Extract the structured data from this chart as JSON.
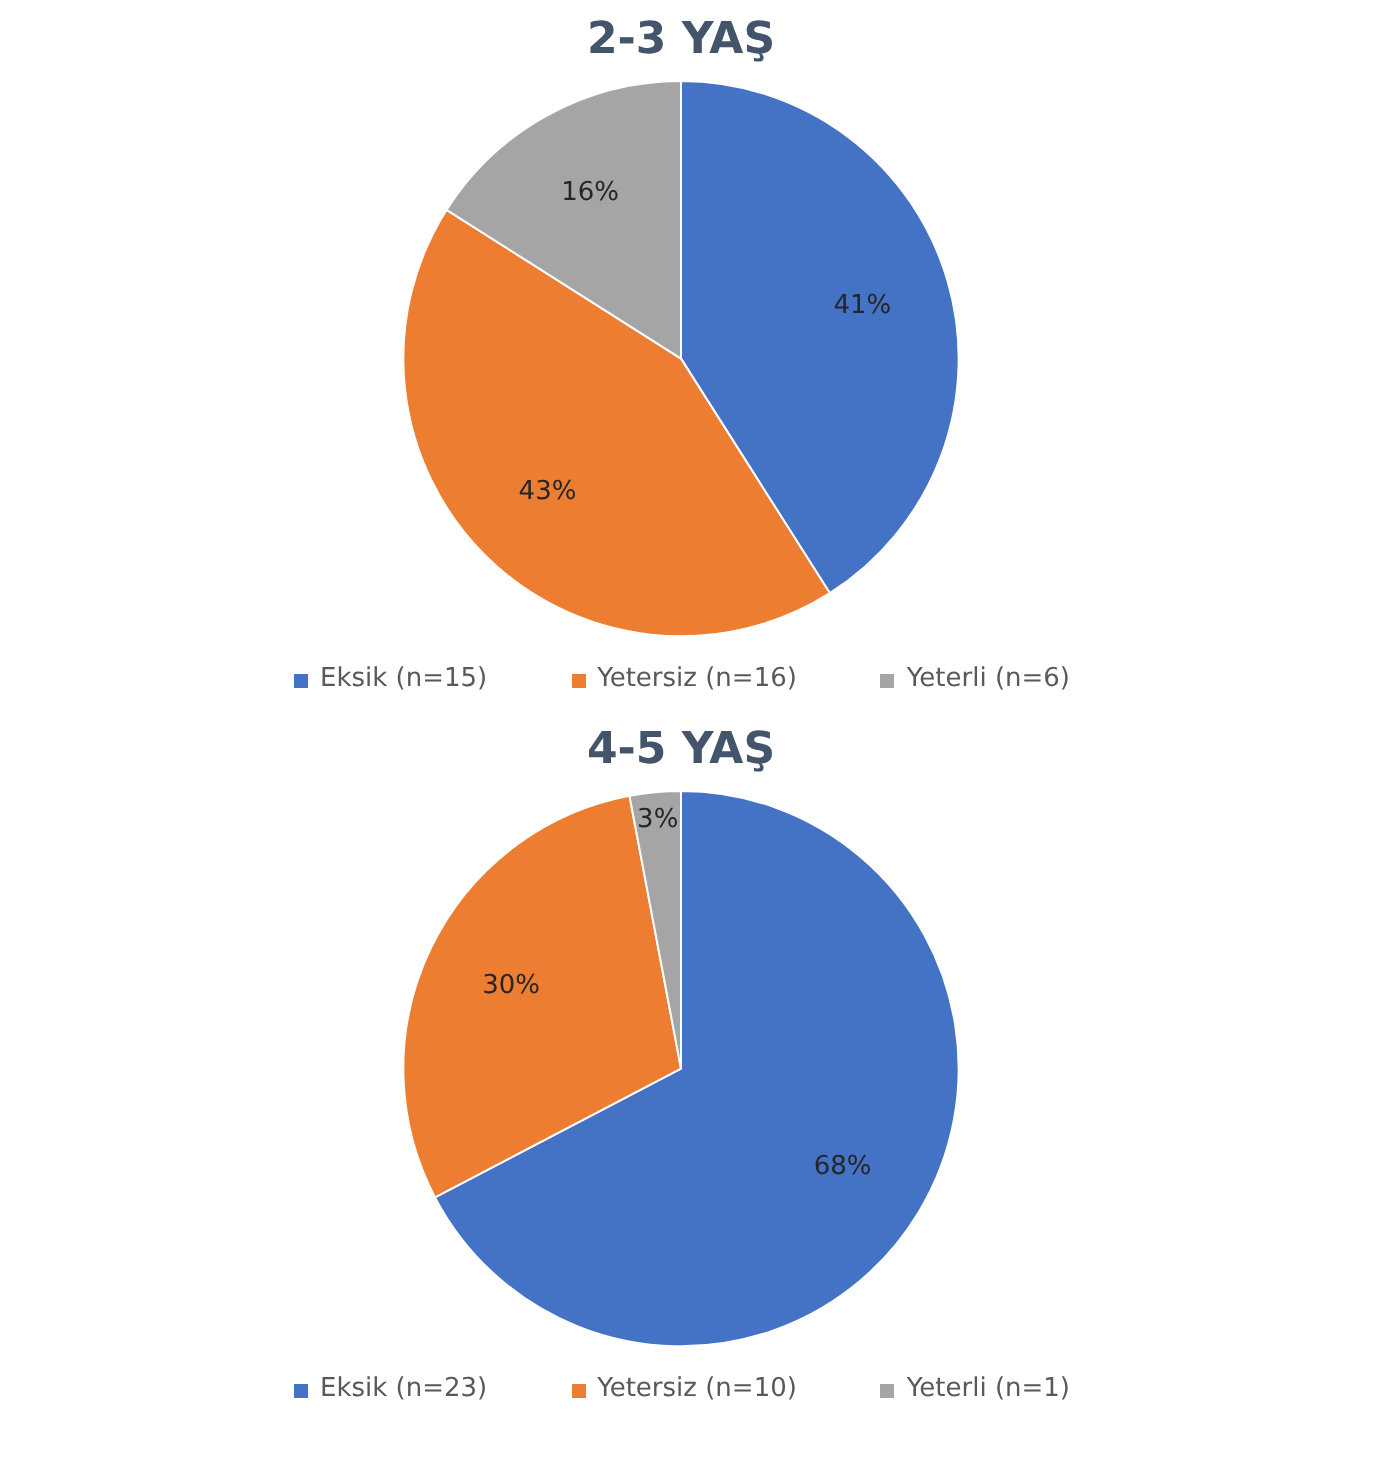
{
  "chart_data": [
    {
      "type": "pie",
      "title": "2-3 YAŞ",
      "categories": [
        "Eksik (n=15)",
        "Yetersiz (n=16)",
        "Yeterli (n=6)"
      ],
      "values": [
        41,
        43,
        16
      ],
      "value_labels": [
        "41%",
        "43%",
        "16%"
      ],
      "colors": [
        "#4472c4",
        "#ed7d31",
        "#a5a5a5"
      ],
      "legend": "bottom"
    },
    {
      "type": "pie",
      "title": "4-5 YAŞ",
      "categories": [
        "Eksik (n=23)",
        "Yetersiz (n=10)",
        "Yeterli (n=1)"
      ],
      "values": [
        68,
        30,
        3
      ],
      "value_labels": [
        "68%",
        "30%",
        "3%"
      ],
      "colors": [
        "#4472c4",
        "#ed7d31",
        "#a5a5a5"
      ],
      "legend": "bottom"
    }
  ]
}
